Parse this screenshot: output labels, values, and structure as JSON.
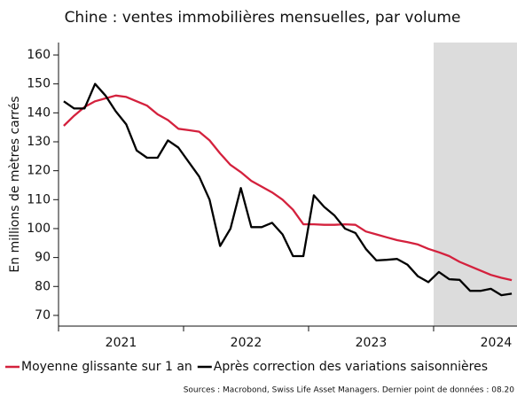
{
  "chart_data": {
    "type": "line",
    "title": "Chine : ventes immobilières mensuelles, par volume",
    "y_label": "En millions de mètres carrés",
    "source": "Sources : Macrobond, Swiss Life Asset Managers. Dernier point de données : 08.20",
    "x": [
      2021.042,
      2021.125,
      2021.208,
      2021.292,
      2021.375,
      2021.458,
      2021.542,
      2021.625,
      2021.708,
      2021.792,
      2021.875,
      2021.958,
      2022.042,
      2022.125,
      2022.208,
      2022.292,
      2022.375,
      2022.458,
      2022.542,
      2022.625,
      2022.708,
      2022.792,
      2022.875,
      2022.958,
      2023.042,
      2023.125,
      2023.208,
      2023.292,
      2023.375,
      2023.458,
      2023.542,
      2023.625,
      2023.708,
      2023.792,
      2023.875,
      2023.958,
      2024.042,
      2024.125,
      2024.208,
      2024.292,
      2024.375,
      2024.458,
      2024.542,
      2024.625
    ],
    "series": [
      {
        "name": "Moyenne glissante sur 1 an",
        "color": "#d4213d",
        "values": [
          135.5,
          139,
          142,
          144,
          145,
          146,
          145.5,
          144,
          142.5,
          139.5,
          137.5,
          134.5,
          134,
          133.5,
          130.5,
          126,
          122,
          119.5,
          116.5,
          114.5,
          112.5,
          110,
          106.5,
          101.5,
          101.5,
          101.3,
          101.3,
          101.5,
          101.3,
          99,
          98,
          97,
          96,
          95.3,
          94.5,
          93,
          91.8,
          90.5,
          88.5,
          87,
          85.5,
          84,
          83,
          82.2
        ]
      },
      {
        "name": "Après correction des variations saisonnières",
        "color": "#000000",
        "values": [
          144,
          141.5,
          141.5,
          150,
          146,
          140.5,
          136,
          127,
          124.5,
          124.5,
          130.5,
          128,
          123,
          118,
          110,
          94,
          100,
          114,
          100.5,
          100.5,
          102,
          98,
          90.5,
          90.5,
          111.5,
          107.5,
          104.5,
          100,
          98.5,
          93,
          89,
          89.2,
          89.5,
          87.5,
          83.5,
          81.5,
          85,
          82.5,
          82.3,
          78.5,
          78.5,
          79.2,
          77,
          77.5
        ]
      }
    ],
    "xlim": [
      2021,
      2024.667
    ],
    "xticks": [
      {
        "value": 2021,
        "label": "2021"
      },
      {
        "value": 2022,
        "label": "2022"
      },
      {
        "value": 2023,
        "label": "2023"
      },
      {
        "value": 2024,
        "label": "2024"
      }
    ],
    "ylim": [
      66.3,
      164.3
    ],
    "yticks": [
      70,
      80,
      90,
      100,
      110,
      120,
      130,
      140,
      150,
      160
    ],
    "shaded_from": 2024,
    "shade_color": "#dcdcdc",
    "legend": "bottom"
  }
}
